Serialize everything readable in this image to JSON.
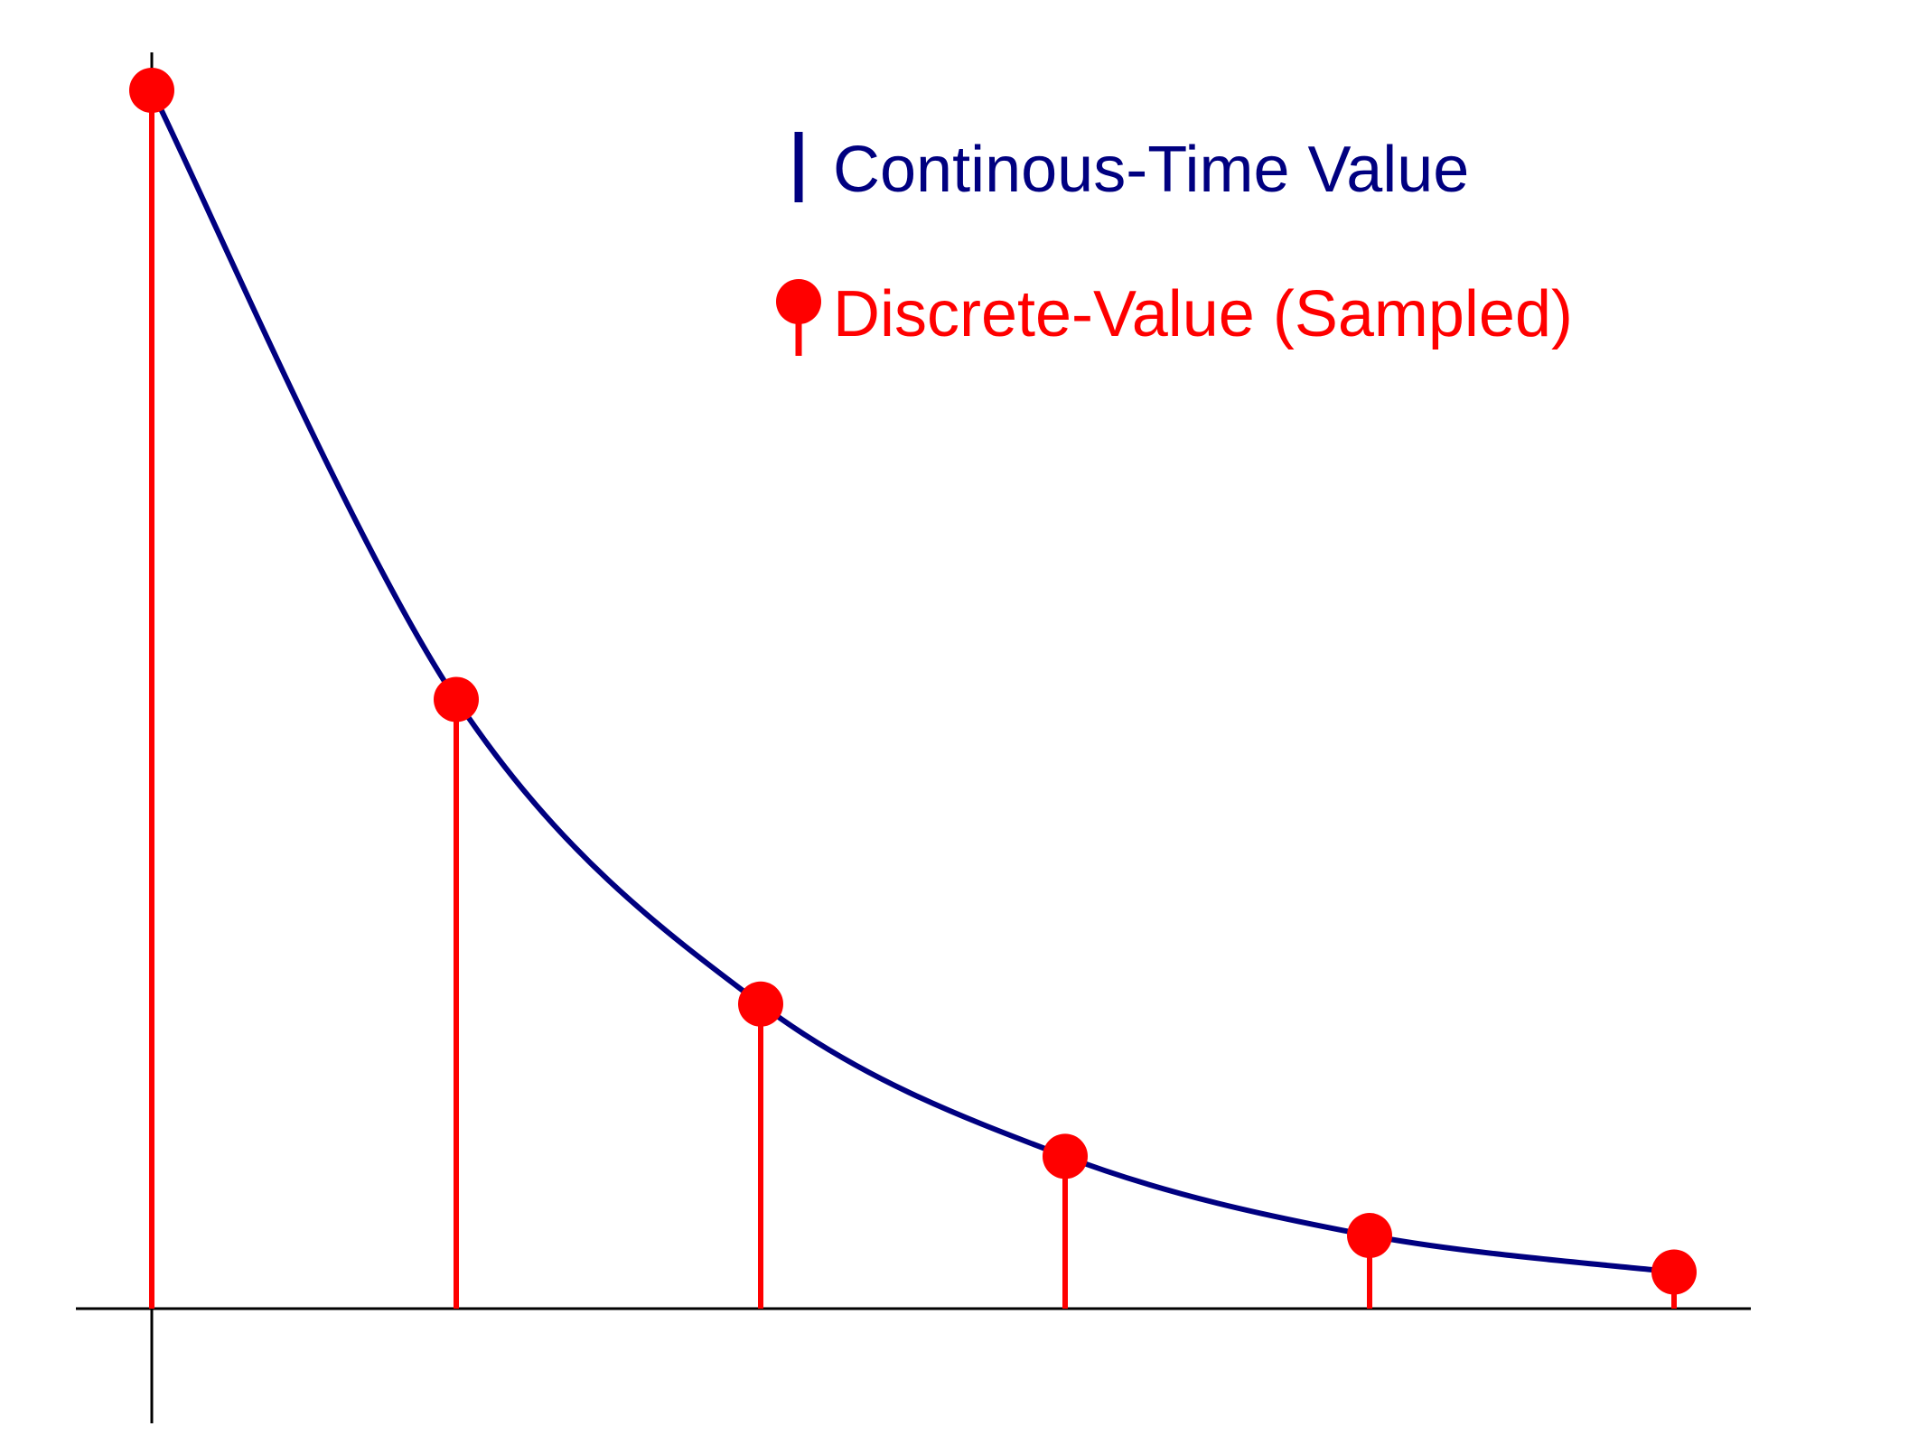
{
  "chart_data": {
    "type": "line",
    "title": "",
    "xlabel": "",
    "ylabel": "",
    "x": [
      0,
      1,
      2,
      3,
      4,
      5
    ],
    "xlim": [
      -0.25,
      5.25
    ],
    "ylim": [
      -0.09,
      1.03
    ],
    "grid": false,
    "legend_position": "top-right",
    "series": [
      {
        "name": "Continous-Time Value",
        "kind": "curve",
        "color": "#000080",
        "values": [
          1.0,
          0.5,
          0.25,
          0.125,
          0.06,
          0.03
        ]
      },
      {
        "name": "Discrete-Value (Sampled)",
        "kind": "stem",
        "color": "#ff0000",
        "values": [
          1.0,
          0.5,
          0.25,
          0.125,
          0.06,
          0.03
        ]
      }
    ]
  },
  "colors": {
    "curve": "#000080",
    "stem": "#ff0000",
    "axis": "#000000"
  }
}
